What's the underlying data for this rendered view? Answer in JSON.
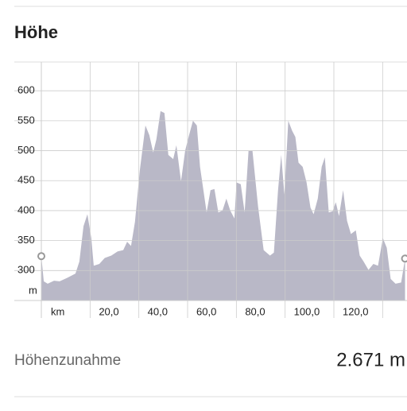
{
  "chart_data": {
    "type": "area",
    "title": "Höhe",
    "y_unit": "m",
    "x_unit": "km",
    "color": "#b9b8c7",
    "x": [
      0,
      1,
      2.6,
      5.2,
      7.5,
      10.7,
      14,
      15.6,
      17.3,
      18.9,
      20.5,
      21.5,
      23.8,
      26,
      28.7,
      31.3,
      33.6,
      35.2,
      36.8,
      38.4,
      40.4,
      42.7,
      44.3,
      45.9,
      47.2,
      48.9,
      50.5,
      52.1,
      54.1,
      55.4,
      57.3,
      59,
      60.6,
      62.2,
      63.8,
      65.1,
      67.8,
      69.4,
      71,
      72.6,
      74.3,
      75.9,
      77.5,
      79.2,
      80.1,
      81.8,
      83.4,
      85,
      86.6,
      88.9,
      91.2,
      93.8,
      95.4,
      97.1,
      98.4,
      99.7,
      101.3,
      102.9,
      104.2,
      105.5,
      107.2,
      108.8,
      110.4,
      111.7,
      113.4,
      115,
      116.3,
      117.9,
      119.5,
      120.8,
      122.1,
      123.8,
      125.4,
      127,
      129,
      130.6,
      132.2,
      134.2,
      136.2,
      138.1,
      140.1,
      141.7,
      143.3,
      145.3,
      147.6,
      149.2
    ],
    "values": [
      324,
      282,
      278,
      283,
      282,
      288,
      295,
      315,
      374,
      394,
      354,
      308,
      311,
      321,
      325,
      332,
      334,
      348,
      341,
      381,
      467,
      542,
      526,
      497,
      519,
      566,
      563,
      493,
      486,
      509,
      449,
      500,
      526,
      550,
      542,
      473,
      397,
      434,
      436,
      397,
      400,
      420,
      400,
      387,
      447,
      444,
      397,
      500,
      500,
      407,
      334,
      325,
      330,
      434,
      493,
      427,
      550,
      533,
      523,
      480,
      473,
      447,
      405,
      394,
      420,
      473,
      489,
      397,
      399,
      414,
      391,
      434,
      383,
      361,
      367,
      325,
      315,
      301,
      311,
      308,
      354,
      338,
      286,
      278,
      280,
      320
    ],
    "xlim": [
      0,
      150
    ],
    "ylim": [
      250,
      648
    ],
    "yticks": [
      300,
      350,
      400,
      450,
      500,
      550,
      600
    ],
    "xticks": [
      {
        "value": 20,
        "label": "20,0"
      },
      {
        "value": 40,
        "label": "40,0"
      },
      {
        "value": 60,
        "label": "60,0"
      },
      {
        "value": 80,
        "label": "80,0"
      },
      {
        "value": 100,
        "label": "100,0"
      },
      {
        "value": 120,
        "label": "120,0"
      },
      {
        "value": 140,
        "label": null
      }
    ],
    "grid": true
  },
  "summary": {
    "label": "Höhenzunahme",
    "value": "2.671 m"
  }
}
